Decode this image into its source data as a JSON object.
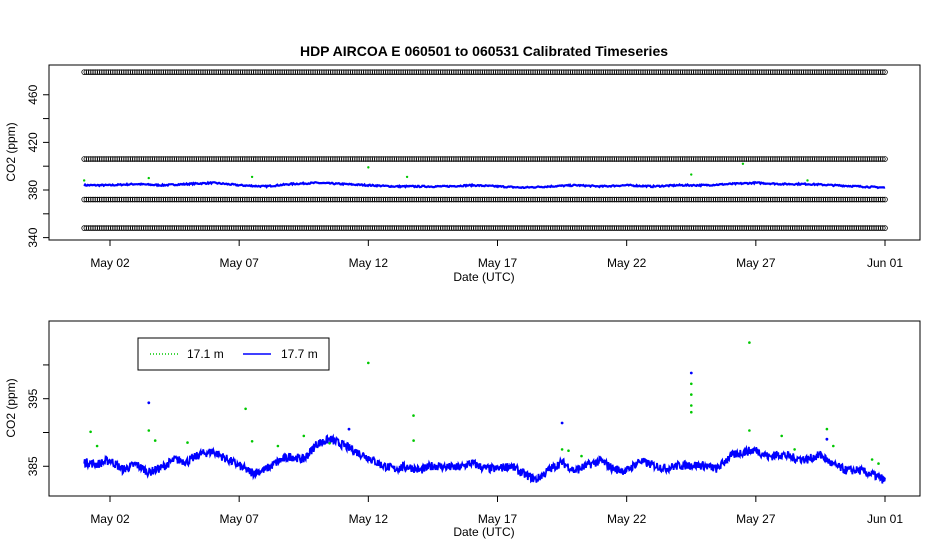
{
  "chart_data": [
    {
      "type": "scatter",
      "title": "HDP   AIRCOA  E   060501  to  060531   Calibrated Timeseries",
      "xlabel": "Date (UTC)",
      "ylabel": "CO2 (ppm)",
      "x_unit": "date",
      "xlim": [
        "2006-04-29",
        "2006-06-01"
      ],
      "xticks": [
        "2006-05-02",
        "2006-05-07",
        "2006-05-12",
        "2006-05-17",
        "2006-05-22",
        "2006-05-27",
        "2006-06-01"
      ],
      "xtick_labels": [
        "May 02",
        "May 07",
        "May 12",
        "May 17",
        "May 22",
        "May 27",
        "Jun 01"
      ],
      "ylim": [
        338,
        485
      ],
      "yticks": [
        340,
        380,
        420,
        460
      ],
      "ytick_labels": [
        "340",
        "380",
        "420",
        "460"
      ],
      "minor_yticks": [
        360,
        400,
        440
      ],
      "calibration_levels": [
        {
          "value": 479,
          "color": "#000000"
        },
        {
          "value": 406,
          "color": "#000000"
        },
        {
          "value": 372,
          "color": "#000000"
        },
        {
          "value": 348,
          "color": "#000000"
        }
      ],
      "calibration_range": [
        "2006-05-01T00:00",
        "2006-06-01T00:00"
      ],
      "series": [
        {
          "color": "#0000ff",
          "points": [
            [
              "2006-05-01T00:00",
              384
            ],
            [
              "2006-05-02T00:00",
              384
            ],
            [
              "2006-05-03T00:00",
              385
            ],
            [
              "2006-05-04T00:00",
              384
            ],
            [
              "2006-05-05T00:00",
              385
            ],
            [
              "2006-05-06T00:00",
              386
            ],
            [
              "2006-05-07T00:00",
              384
            ],
            [
              "2006-05-08T00:00",
              383
            ],
            [
              "2006-05-09T00:00",
              385
            ],
            [
              "2006-05-10T00:00",
              386
            ],
            [
              "2006-05-11T00:00",
              385
            ],
            [
              "2006-05-12T00:00",
              384
            ],
            [
              "2006-05-13T00:00",
              383
            ],
            [
              "2006-05-14T00:00",
              383
            ],
            [
              "2006-05-15T00:00",
              383
            ],
            [
              "2006-05-16T00:00",
              384
            ],
            [
              "2006-05-17T00:00",
              383
            ],
            [
              "2006-05-18T00:00",
              382
            ],
            [
              "2006-05-19T00:00",
              383
            ],
            [
              "2006-05-20T00:00",
              384
            ],
            [
              "2006-05-21T00:00",
              383
            ],
            [
              "2006-05-22T00:00",
              384
            ],
            [
              "2006-05-23T00:00",
              383
            ],
            [
              "2006-05-24T00:00",
              384
            ],
            [
              "2006-05-25T00:00",
              384
            ],
            [
              "2006-05-26T00:00",
              385
            ],
            [
              "2006-05-27T00:00",
              386
            ],
            [
              "2006-05-28T00:00",
              385
            ],
            [
              "2006-05-29T00:00",
              385
            ],
            [
              "2006-05-30T00:00",
              384
            ],
            [
              "2006-05-31T00:00",
              383
            ],
            [
              "2006-06-01T00:00",
              382
            ]
          ]
        },
        {
          "color": "#00c800",
          "points": [
            [
              "2006-05-01T00:00",
              388
            ],
            [
              "2006-05-03T12:00",
              390
            ],
            [
              "2006-05-07T12:00",
              391
            ],
            [
              "2006-05-12T00:00",
              399
            ],
            [
              "2006-05-13T12:00",
              391
            ],
            [
              "2006-05-24T12:00",
              393
            ],
            [
              "2006-05-26T12:00",
              402
            ],
            [
              "2006-05-29T00:00",
              388
            ]
          ]
        }
      ]
    },
    {
      "type": "line",
      "xlabel": "Date (UTC)",
      "ylabel": "CO2 (ppm)",
      "x_unit": "date",
      "xlim": [
        "2006-04-29",
        "2006-06-01"
      ],
      "xticks": [
        "2006-05-02",
        "2006-05-07",
        "2006-05-12",
        "2006-05-17",
        "2006-05-22",
        "2006-05-27",
        "2006-06-01"
      ],
      "xtick_labels": [
        "May 02",
        "May 07",
        "May 12",
        "May 17",
        "May 22",
        "May 27",
        "Jun 01"
      ],
      "ylim": [
        380.6,
        406.5
      ],
      "yticks": [
        385,
        395
      ],
      "ytick_labels": [
        "385",
        "395"
      ],
      "minor_yticks": [
        390,
        400
      ],
      "legend": {
        "position": "top-left",
        "entries": [
          {
            "label": "17.1 m",
            "color": "#00c800",
            "style": "dotted"
          },
          {
            "label": "17.7 m",
            "color": "#0000ff",
            "style": "solid"
          }
        ]
      },
      "series": [
        {
          "name": "17.7 m",
          "color": "#0000ff",
          "points": [
            [
              "2006-05-01T00:00",
              385.6
            ],
            [
              "2006-05-01T12:00",
              385.3
            ],
            [
              "2006-05-02T00:00",
              385.9
            ],
            [
              "2006-05-02T12:00",
              384.5
            ],
            [
              "2006-05-03T00:00",
              385.3
            ],
            [
              "2006-05-03T12:00",
              384.1
            ],
            [
              "2006-05-04T00:00",
              384.8
            ],
            [
              "2006-05-04T12:00",
              386.0
            ],
            [
              "2006-05-05T00:00",
              385.7
            ],
            [
              "2006-05-05T12:00",
              386.8
            ],
            [
              "2006-05-06T00:00",
              387.2
            ],
            [
              "2006-05-06T12:00",
              386.1
            ],
            [
              "2006-05-07T00:00",
              385.1
            ],
            [
              "2006-05-07T12:00",
              384.0
            ],
            [
              "2006-05-08T00:00",
              384.5
            ],
            [
              "2006-05-08T12:00",
              385.7
            ],
            [
              "2006-05-09T00:00",
              386.5
            ],
            [
              "2006-05-09T12:00",
              386.0
            ],
            [
              "2006-05-10T00:00",
              388.3
            ],
            [
              "2006-05-10T12:00",
              389.0
            ],
            [
              "2006-05-11T00:00",
              388.2
            ],
            [
              "2006-05-11T12:00",
              387.2
            ],
            [
              "2006-05-12T00:00",
              386.3
            ],
            [
              "2006-05-12T12:00",
              385.2
            ],
            [
              "2006-05-13T00:00",
              384.6
            ],
            [
              "2006-05-13T12:00",
              385.0
            ],
            [
              "2006-05-14T00:00",
              384.4
            ],
            [
              "2006-05-14T12:00",
              385.1
            ],
            [
              "2006-05-15T00:00",
              384.9
            ],
            [
              "2006-05-15T12:00",
              384.8
            ],
            [
              "2006-05-16T00:00",
              385.5
            ],
            [
              "2006-05-16T12:00",
              384.7
            ],
            [
              "2006-05-17T00:00",
              384.6
            ],
            [
              "2006-05-17T12:00",
              385.1
            ],
            [
              "2006-05-18T00:00",
              383.9
            ],
            [
              "2006-05-18T12:00",
              383.0
            ],
            [
              "2006-05-19T00:00",
              384.5
            ],
            [
              "2006-05-19T12:00",
              385.6
            ],
            [
              "2006-05-20T00:00",
              384.3
            ],
            [
              "2006-05-20T12:00",
              385.2
            ],
            [
              "2006-05-21T00:00",
              385.8
            ],
            [
              "2006-05-21T12:00",
              384.6
            ],
            [
              "2006-05-22T00:00",
              384.3
            ],
            [
              "2006-05-22T12:00",
              385.8
            ],
            [
              "2006-05-23T00:00",
              385.2
            ],
            [
              "2006-05-23T12:00",
              384.7
            ],
            [
              "2006-05-24T00:00",
              385.1
            ],
            [
              "2006-05-24T12:00",
              385.2
            ],
            [
              "2006-05-25T00:00",
              385.1
            ],
            [
              "2006-05-25T12:00",
              384.6
            ],
            [
              "2006-05-26T00:00",
              386.5
            ],
            [
              "2006-05-26T12:00",
              387.1
            ],
            [
              "2006-05-27T00:00",
              387.4
            ],
            [
              "2006-05-27T12:00",
              386.4
            ],
            [
              "2006-05-28T00:00",
              386.8
            ],
            [
              "2006-05-28T12:00",
              386.2
            ],
            [
              "2006-05-29T00:00",
              386.0
            ],
            [
              "2006-05-29T12:00",
              386.7
            ],
            [
              "2006-05-30T00:00",
              385.2
            ],
            [
              "2006-05-30T12:00",
              384.4
            ],
            [
              "2006-05-31T00:00",
              384.4
            ],
            [
              "2006-05-31T12:00",
              383.8
            ],
            [
              "2006-06-01T00:00",
              382.9
            ]
          ]
        },
        {
          "name": "17.1 m",
          "color": "#00c800",
          "points": [
            [
              "2006-05-01T06:00",
              390.1
            ],
            [
              "2006-05-01T12:00",
              388.0
            ],
            [
              "2006-05-03T12:00",
              390.3
            ],
            [
              "2006-05-03T18:00",
              388.8
            ],
            [
              "2006-05-05T00:00",
              388.5
            ],
            [
              "2006-05-07T06:00",
              393.5
            ],
            [
              "2006-05-07T12:00",
              388.7
            ],
            [
              "2006-05-08T12:00",
              388.0
            ],
            [
              "2006-05-09T12:00",
              389.5
            ],
            [
              "2006-05-10T12:00",
              388.4
            ],
            [
              "2006-05-12T00:00",
              400.3
            ],
            [
              "2006-05-13T18:00",
              392.5
            ],
            [
              "2006-05-13T18:01",
              388.8
            ],
            [
              "2006-05-19T12:00",
              387.5
            ],
            [
              "2006-05-19T18:00",
              387.3
            ],
            [
              "2006-05-20T06:00",
              386.5
            ],
            [
              "2006-05-24T12:00",
              397.2
            ],
            [
              "2006-05-24T12:01",
              395.6
            ],
            [
              "2006-05-24T12:02",
              394.0
            ],
            [
              "2006-05-24T12:03",
              393.0
            ],
            [
              "2006-05-26T18:00",
              403.3
            ],
            [
              "2006-05-26T18:01",
              390.3
            ],
            [
              "2006-05-28T00:00",
              389.5
            ],
            [
              "2006-05-28T12:00",
              387.5
            ],
            [
              "2006-05-29T18:00",
              390.5
            ],
            [
              "2006-05-30T00:00",
              388.0
            ],
            [
              "2006-05-31T12:00",
              386.0
            ],
            [
              "2006-05-31T18:00",
              385.4
            ]
          ]
        },
        {
          "name": "17.7 m spikes",
          "color": "#0000ff",
          "points": [
            [
              "2006-05-03T12:00",
              394.4
            ],
            [
              "2006-05-11T06:00",
              390.5
            ],
            [
              "2006-05-19T12:00",
              391.4
            ],
            [
              "2006-05-24T12:00",
              398.8
            ],
            [
              "2006-05-29T18:00",
              389.0
            ]
          ]
        }
      ]
    }
  ]
}
